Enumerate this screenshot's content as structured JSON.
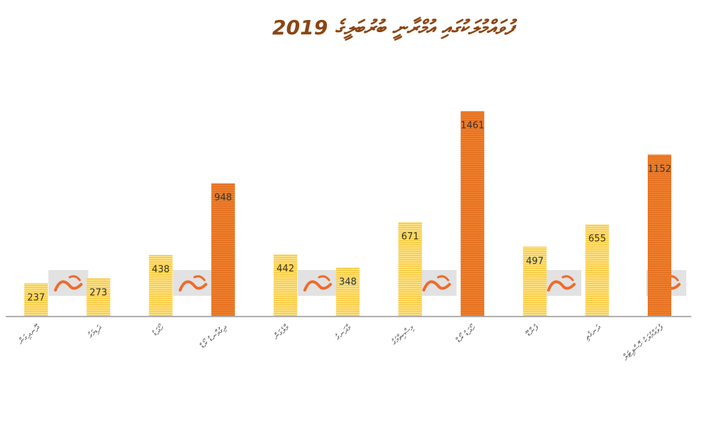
{
  "title": "ފުވައްމުލަކުގައި އުމްރާނީ ބުރުބަލީގެ 2019",
  "colors": {
    "regular_bar": "#f7c531",
    "regular_bar_light": "#fde389",
    "highlight_bar": "#ee7f2d",
    "highlight_bar_dark": "#e06b1c",
    "axis": "#b0b0b0",
    "logo_bg": "#dddddd",
    "logo_mark": "#ee6b2a"
  },
  "chart_data": {
    "type": "bar",
    "title": "ފުވައްމުލަކުގައި އުމްރާނީ ބުރުބަލީގެ 2019",
    "categories": [
      "ދޫނދިގަން",
      "ދަޑިމަގު",
      "ހޯދަޑު",
      "ދިގުވާނޑު ރޯޑް",
      "މާލެގަން",
      "މާދަނގު",
      "މިސްކިތްމަގު",
      "ހޯދަޑު ރޯޑް",
      "ފުނާޑޫ",
      "ދަނގެތި",
      "ފުވައްމުލަކު ހޮސްޕިޓަލް"
    ],
    "values": [
      237,
      273,
      438,
      948,
      442,
      348,
      671,
      1461,
      497,
      655,
      1152
    ],
    "highlight": [
      false,
      false,
      false,
      true,
      false,
      false,
      false,
      true,
      false,
      false,
      true
    ],
    "ylim": [
      0,
      1500
    ],
    "grid": false,
    "legend": "none"
  },
  "logo": {
    "name": "news-logo-watermark",
    "icon": "brand-mark-icon"
  }
}
